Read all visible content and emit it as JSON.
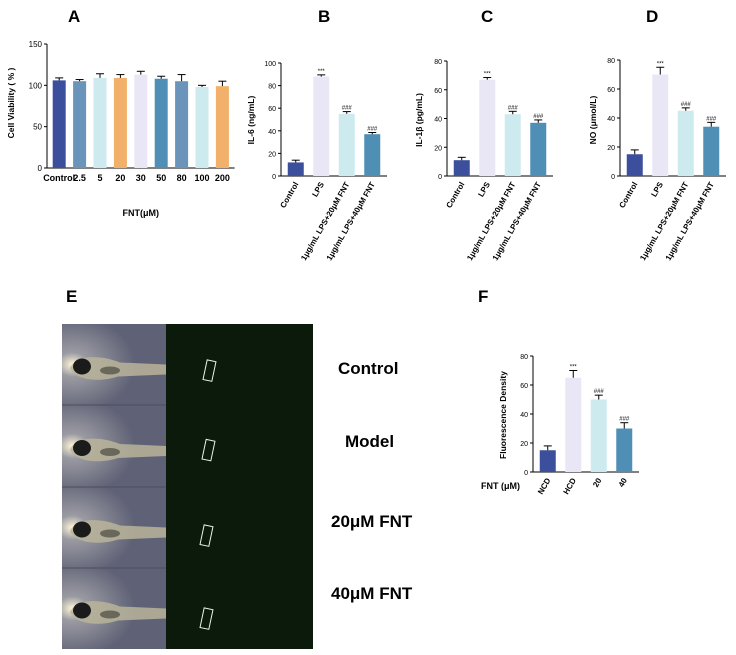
{
  "panel_letters": [
    "A",
    "B",
    "C",
    "D",
    "E",
    "F"
  ],
  "colors": {
    "navy": "#3b4f9c",
    "steel": "#6a94b9",
    "lightcyan": "#cdeaef",
    "orange": "#f2b16a",
    "lavender": "#e9e7f5",
    "blue2": "#4f8fb5",
    "fluor_bg": "#0c1a0c",
    "fish_bg": "#6d7082"
  },
  "chart_data": [
    {
      "panel": "A",
      "type": "bar",
      "title": "",
      "ylabel": "Cell Viability ( % )",
      "xlabel": "FNT(μM)",
      "ylim": [
        0,
        150
      ],
      "yticks": [
        0,
        50,
        100,
        150
      ],
      "categories": [
        "Control",
        "2.5",
        "5",
        "20",
        "30",
        "50",
        "80",
        "100",
        "200"
      ],
      "values": [
        106,
        105,
        109,
        109,
        113,
        108,
        105,
        98,
        99
      ],
      "errors": [
        3,
        2,
        5,
        4,
        4,
        3,
        8,
        2,
        6
      ],
      "colors": [
        "#3b4f9c",
        "#6a94b9",
        "#cdeaef",
        "#f2b16a",
        "#e9e7f5",
        "#4f8fb5",
        "#6a94b9",
        "#cdeaef",
        "#f2b16a"
      ],
      "annotations": [
        "",
        "",
        "",
        "",
        "",
        "",
        "",
        "",
        ""
      ]
    },
    {
      "panel": "B",
      "type": "bar",
      "ylabel": "IL-6 (ng/mL)",
      "ylim": [
        0,
        100
      ],
      "yticks": [
        0,
        20,
        40,
        60,
        80,
        100
      ],
      "categories": [
        "Control",
        "LPS",
        "1μg/mL LPS+20μM FNT",
        "1μg/mL LPS+40μM FNT"
      ],
      "values": [
        12,
        88,
        55,
        37
      ],
      "errors": [
        2,
        1.5,
        2,
        1.5
      ],
      "colors": [
        "#3b4f9c",
        "#e9e7f5",
        "#cdeaef",
        "#4f8fb5"
      ],
      "annotations": [
        "",
        "***",
        "###",
        "###"
      ]
    },
    {
      "panel": "C",
      "type": "bar",
      "ylabel": "IL-1β (pg/mL)",
      "ylim": [
        0,
        80
      ],
      "yticks": [
        0,
        20,
        40,
        60,
        80
      ],
      "categories": [
        "Control",
        "LPS",
        "1μg/mL LPS+20μM FNT",
        "1μg/mL LPS+40μM FNT"
      ],
      "values": [
        11,
        67,
        43,
        37
      ],
      "errors": [
        2,
        1.5,
        2,
        2
      ],
      "colors": [
        "#3b4f9c",
        "#e9e7f5",
        "#cdeaef",
        "#4f8fb5"
      ],
      "annotations": [
        "",
        "***",
        "###",
        "###"
      ]
    },
    {
      "panel": "D",
      "type": "bar",
      "ylabel": "NO (μmol/L)",
      "ylim": [
        0,
        80
      ],
      "yticks": [
        0,
        20,
        40,
        60,
        80
      ],
      "categories": [
        "Control",
        "LPS",
        "1μg/mL LPS+20μM FNT",
        "1μg/mL LPS+40μM FNT"
      ],
      "values": [
        15,
        70,
        45,
        34
      ],
      "errors": [
        3,
        5,
        2,
        3
      ],
      "colors": [
        "#3b4f9c",
        "#e9e7f5",
        "#cdeaef",
        "#4f8fb5"
      ],
      "annotations": [
        "",
        "***",
        "###",
        "###"
      ]
    },
    {
      "panel": "F",
      "type": "bar",
      "ylabel": "Fluorescence Density",
      "xlabel_left": "FNT (μM)",
      "ylim": [
        0,
        80
      ],
      "yticks": [
        0,
        20,
        40,
        60,
        80
      ],
      "categories": [
        "NCD",
        "HCD",
        "20",
        "40"
      ],
      "values": [
        15,
        65,
        50,
        30
      ],
      "errors": [
        3,
        5,
        3,
        4
      ],
      "colors": [
        "#3b4f9c",
        "#e9e7f5",
        "#cdeaef",
        "#4f8fb5"
      ],
      "annotations": [
        "",
        "***",
        "###",
        "###"
      ]
    }
  ],
  "panel_e": {
    "row_labels": [
      "Control",
      "Model",
      "20μM FNT",
      "40μM FNT"
    ]
  }
}
